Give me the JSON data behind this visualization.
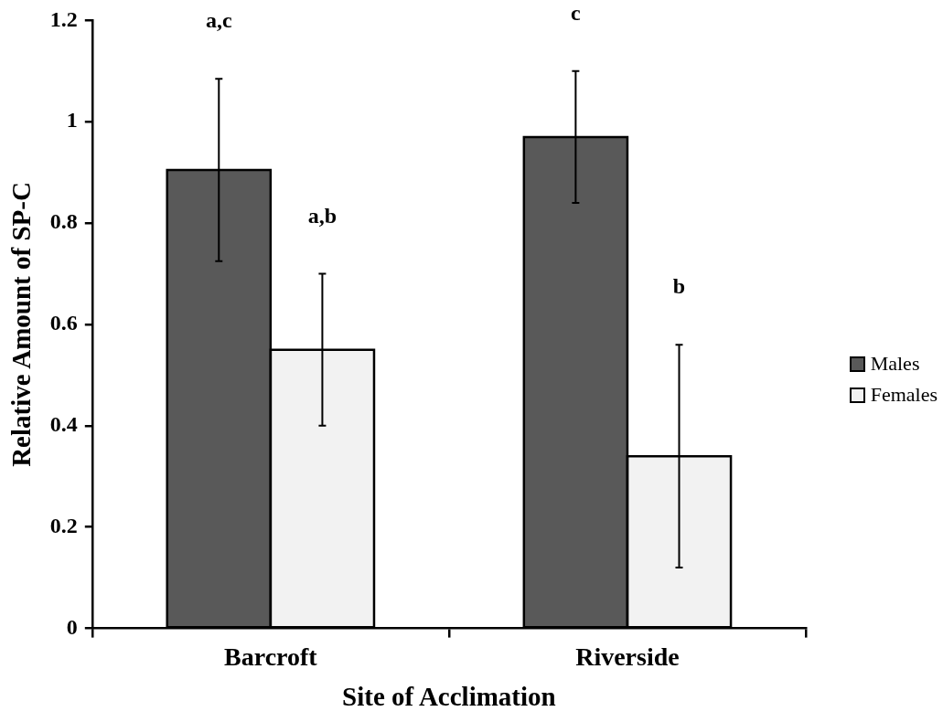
{
  "chart_data": {
    "type": "bar",
    "xlabel": "Site of Acclimation",
    "ylabel": "Relative Amount of SP-C",
    "categories": [
      "Barcroft",
      "Riverside"
    ],
    "series": [
      {
        "name": "Males",
        "color": "#595959",
        "values": [
          0.905,
          0.97
        ],
        "errors": [
          0.18,
          0.13
        ]
      },
      {
        "name": "Females",
        "color": "#f2f2f2",
        "values": [
          0.55,
          0.34
        ],
        "errors": [
          0.15,
          0.22
        ]
      }
    ],
    "ylim": [
      0,
      1.2
    ],
    "yticks": [
      0,
      0.2,
      0.4,
      0.6,
      0.8,
      1,
      1.2
    ],
    "grid": false,
    "legend": "right",
    "annotations": [
      "a,c",
      "a,b",
      "c",
      "b"
    ]
  }
}
